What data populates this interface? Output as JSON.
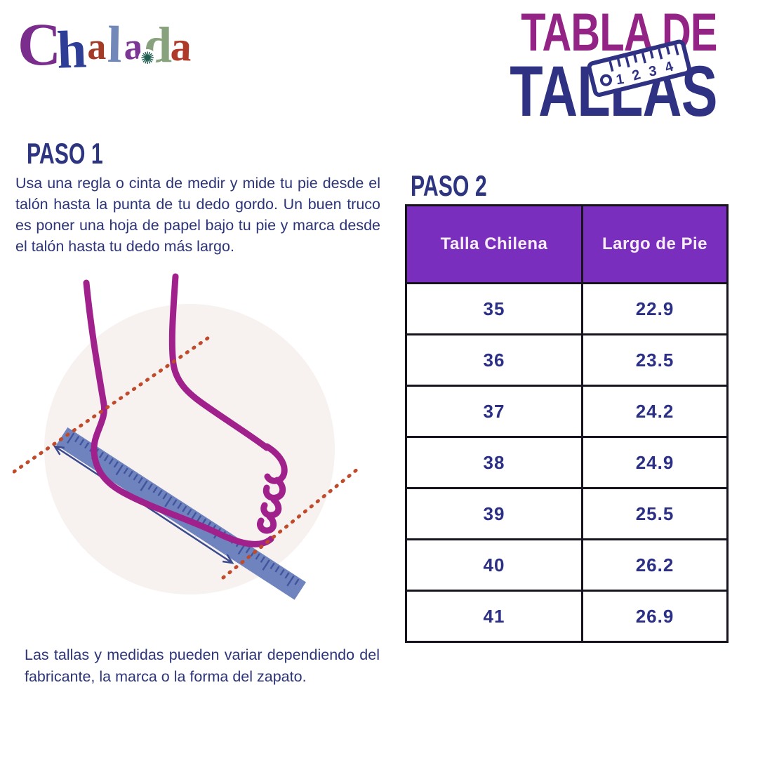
{
  "brand": {
    "name": "Chalada",
    "letters": [
      {
        "char": "C",
        "color": "#7b2d8e"
      },
      {
        "char": "h",
        "color": "#2e3e96"
      },
      {
        "char": "a",
        "color": "#a33b27"
      },
      {
        "char": "l",
        "color": "#7188b8"
      },
      {
        "char": "a",
        "color": "#7c3796"
      },
      {
        "char": "d",
        "color": "#87a27c"
      },
      {
        "char": "a",
        "color": "#b03a2a"
      }
    ],
    "flower_glyph": "✺"
  },
  "title": {
    "line1": "TABLA DE",
    "line2": "TALLAS",
    "line1_color": "#932486",
    "line2_color": "#2f3182",
    "ruler_numbers": [
      "1",
      "2",
      "3",
      "4"
    ]
  },
  "paso1": {
    "heading": "PASO 1",
    "body": "Usa una regla o cinta de medir y mide tu pie desde el talón hasta la punta de tu dedo gordo. Un buen truco es poner una hoja de papel bajo tu pie y marca desde el talón hasta tu dedo más largo."
  },
  "paso2": {
    "heading": "PASO 2"
  },
  "size_table": {
    "headers": [
      "Talla Chilena",
      "Largo de Pie"
    ],
    "rows": [
      [
        "35",
        "22.9"
      ],
      [
        "36",
        "23.5"
      ],
      [
        "37",
        "24.2"
      ],
      [
        "38",
        "24.9"
      ],
      [
        "39",
        "25.5"
      ],
      [
        "40",
        "26.2"
      ],
      [
        "41",
        "26.9"
      ]
    ],
    "header_bg": "#7a2ebe",
    "header_text_color": "#f7eef6",
    "cell_text_color": "#2b2f86"
  },
  "disclaimer": "Las tallas y medidas pueden variar dependiendo del fabricante, la marca o la forma del zapato.",
  "illustration": {
    "name": "foot-measurement",
    "circle_bg": "#f7f1f0",
    "foot_color": "#a1218c",
    "ruler_color": "#6f84be",
    "tick_color": "#42549e",
    "dotted_line_color": "#bf4b2b",
    "arrow_color": "#3a4a8c"
  },
  "chart_data": {
    "type": "table",
    "title": "Tabla de Tallas",
    "columns": [
      "Talla Chilena",
      "Largo de Pie"
    ],
    "rows": [
      [
        35,
        22.9
      ],
      [
        36,
        23.5
      ],
      [
        37,
        24.2
      ],
      [
        38,
        24.9
      ],
      [
        39,
        25.5
      ],
      [
        40,
        26.2
      ],
      [
        41,
        26.9
      ]
    ]
  }
}
